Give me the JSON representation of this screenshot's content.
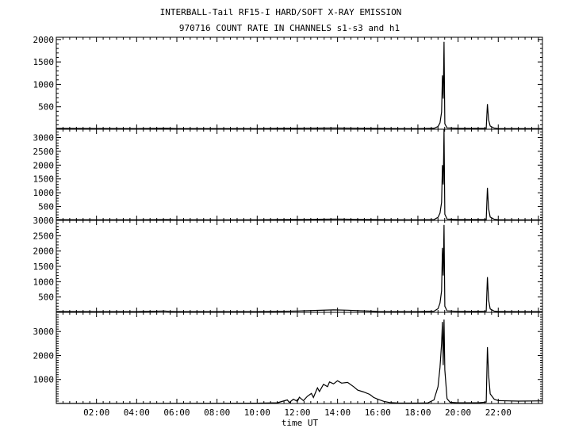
{
  "header": {
    "title_line1": "INTERBALL-Tail RF15-I HARD/SOFT X-RAY EMISSION",
    "title_line2": "970716  COUNT RATE IN CHANNELS s1-s3 and h1"
  },
  "chart_data": {
    "type": "line",
    "xlabel": "time UT",
    "x_unit": "hours UT",
    "xlim": [
      0,
      24.2
    ],
    "x_ticks": [
      2,
      4,
      6,
      8,
      10,
      12,
      14,
      16,
      18,
      20,
      22
    ],
    "x_tick_labels": [
      "02:00",
      "04:00",
      "06:00",
      "08:00",
      "10:00",
      "12:00",
      "14:00",
      "16:00",
      "18:00",
      "20:00",
      "22:00"
    ],
    "grid": false,
    "legend": "none",
    "panels": [
      {
        "ylim": [
          0,
          2050
        ],
        "y_ticks": [
          500,
          1000,
          1500,
          2000
        ],
        "y_tick_labels": [
          "500",
          "1000",
          "1500",
          "2000"
        ],
        "points": [
          [
            0,
            18
          ],
          [
            2,
            16
          ],
          [
            4,
            15
          ],
          [
            5.5,
            20
          ],
          [
            6,
            15
          ],
          [
            8,
            15
          ],
          [
            10,
            15
          ],
          [
            11,
            18
          ],
          [
            12,
            20
          ],
          [
            13,
            24
          ],
          [
            14,
            26
          ],
          [
            15,
            22
          ],
          [
            16,
            18
          ],
          [
            17,
            15
          ],
          [
            18,
            15
          ],
          [
            18.8,
            20
          ],
          [
            19.0,
            60
          ],
          [
            19.1,
            140
          ],
          [
            19.18,
            380
          ],
          [
            19.22,
            1200
          ],
          [
            19.26,
            680
          ],
          [
            19.3,
            1950
          ],
          [
            19.34,
            120
          ],
          [
            19.45,
            30
          ],
          [
            20,
            20
          ],
          [
            21,
            18
          ],
          [
            21.4,
            22
          ],
          [
            21.46,
            560
          ],
          [
            21.52,
            210
          ],
          [
            21.6,
            70
          ],
          [
            21.8,
            25
          ],
          [
            22,
            15
          ],
          [
            23,
            14
          ],
          [
            24.2,
            14
          ]
        ]
      },
      {
        "ylim": [
          0,
          3300
        ],
        "y_ticks": [
          500,
          1000,
          1500,
          2000,
          2500,
          3000
        ],
        "y_tick_labels": [
          "500",
          "1000",
          "1500",
          "2000",
          "2500",
          "3000"
        ],
        "points": [
          [
            0,
            25
          ],
          [
            2,
            22
          ],
          [
            4,
            22
          ],
          [
            5.5,
            30
          ],
          [
            6,
            22
          ],
          [
            8,
            20
          ],
          [
            10,
            22
          ],
          [
            11,
            28
          ],
          [
            12,
            32
          ],
          [
            13,
            40
          ],
          [
            14,
            45
          ],
          [
            15,
            38
          ],
          [
            16,
            30
          ],
          [
            17,
            22
          ],
          [
            18,
            22
          ],
          [
            18.8,
            30
          ],
          [
            19.0,
            110
          ],
          [
            19.1,
            260
          ],
          [
            19.18,
            650
          ],
          [
            19.22,
            2000
          ],
          [
            19.26,
            1300
          ],
          [
            19.3,
            3300
          ],
          [
            19.34,
            220
          ],
          [
            19.45,
            50
          ],
          [
            20,
            30
          ],
          [
            21,
            28
          ],
          [
            21.4,
            32
          ],
          [
            21.46,
            1180
          ],
          [
            21.52,
            420
          ],
          [
            21.6,
            120
          ],
          [
            21.8,
            40
          ],
          [
            22,
            22
          ],
          [
            23,
            20
          ],
          [
            24.2,
            20
          ]
        ]
      },
      {
        "ylim": [
          0,
          3000
        ],
        "y_ticks": [
          500,
          1000,
          1500,
          2000,
          2500,
          3000
        ],
        "y_tick_labels": [
          "500",
          "1000",
          "1500",
          "2000",
          "2500",
          "3000"
        ],
        "points": [
          [
            0,
            25
          ],
          [
            2,
            22
          ],
          [
            4,
            24
          ],
          [
            5.4,
            45
          ],
          [
            5.6,
            30
          ],
          [
            6,
            22
          ],
          [
            8,
            22
          ],
          [
            10,
            24
          ],
          [
            11,
            30
          ],
          [
            12,
            45
          ],
          [
            13,
            65
          ],
          [
            13.8,
            80
          ],
          [
            14.5,
            70
          ],
          [
            15,
            55
          ],
          [
            15.8,
            35
          ],
          [
            16,
            25
          ],
          [
            17,
            22
          ],
          [
            18,
            22
          ],
          [
            18.8,
            35
          ],
          [
            19.0,
            120
          ],
          [
            19.1,
            300
          ],
          [
            19.18,
            700
          ],
          [
            19.22,
            2100
          ],
          [
            19.26,
            1200
          ],
          [
            19.3,
            2850
          ],
          [
            19.34,
            200
          ],
          [
            19.45,
            50
          ],
          [
            20,
            30
          ],
          [
            21,
            28
          ],
          [
            21.4,
            35
          ],
          [
            21.46,
            1150
          ],
          [
            21.52,
            400
          ],
          [
            21.6,
            110
          ],
          [
            21.8,
            40
          ],
          [
            22,
            25
          ],
          [
            23,
            22
          ],
          [
            24.2,
            22
          ]
        ]
      },
      {
        "ylim": [
          0,
          3800
        ],
        "y_ticks": [
          1000,
          2000,
          3000
        ],
        "y_tick_labels": [
          "1000",
          "2000",
          "3000"
        ],
        "points": [
          [
            0,
            5
          ],
          [
            4,
            8
          ],
          [
            8,
            10
          ],
          [
            10,
            12
          ],
          [
            11,
            30
          ],
          [
            11.5,
            150
          ],
          [
            11.6,
            40
          ],
          [
            11.8,
            180
          ],
          [
            12,
            90
          ],
          [
            12.1,
            260
          ],
          [
            12.3,
            120
          ],
          [
            12.5,
            300
          ],
          [
            12.7,
            420
          ],
          [
            12.8,
            250
          ],
          [
            13,
            650
          ],
          [
            13.1,
            500
          ],
          [
            13.3,
            800
          ],
          [
            13.5,
            700
          ],
          [
            13.6,
            900
          ],
          [
            13.8,
            820
          ],
          [
            14,
            950
          ],
          [
            14.2,
            850
          ],
          [
            14.5,
            880
          ],
          [
            14.8,
            700
          ],
          [
            15,
            560
          ],
          [
            15.3,
            480
          ],
          [
            15.6,
            380
          ],
          [
            15.8,
            250
          ],
          [
            16,
            180
          ],
          [
            16.3,
            90
          ],
          [
            16.6,
            40
          ],
          [
            17,
            20
          ],
          [
            18,
            15
          ],
          [
            18.5,
            25
          ],
          [
            18.8,
            150
          ],
          [
            19.0,
            700
          ],
          [
            19.1,
            1500
          ],
          [
            19.18,
            2500
          ],
          [
            19.22,
            3400
          ],
          [
            19.26,
            1600
          ],
          [
            19.3,
            3500
          ],
          [
            19.34,
            1400
          ],
          [
            19.45,
            200
          ],
          [
            19.6,
            50
          ],
          [
            20,
            30
          ],
          [
            21,
            30
          ],
          [
            21.4,
            60
          ],
          [
            21.46,
            2350
          ],
          [
            21.52,
            1200
          ],
          [
            21.6,
            400
          ],
          [
            21.8,
            180
          ],
          [
            22,
            120
          ],
          [
            23,
            100
          ],
          [
            24.2,
            110
          ]
        ]
      }
    ]
  }
}
